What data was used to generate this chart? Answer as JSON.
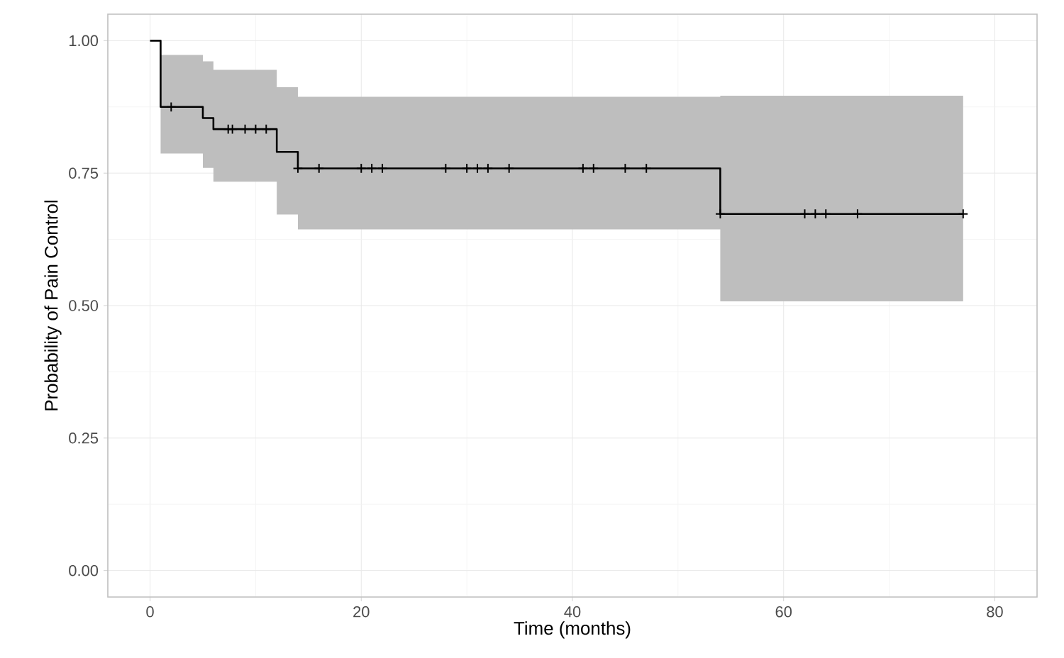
{
  "chart_data": {
    "type": "step",
    "xlabel": "Time (months)",
    "ylabel": "Probability of Pain Control",
    "xlim": [
      -4,
      84
    ],
    "ylim": [
      -0.05,
      1.05
    ],
    "xticks": [
      0,
      20,
      40,
      60,
      80
    ],
    "yticks": [
      {
        "value": 0,
        "label": "0.00"
      },
      {
        "value": 0.25,
        "label": "0.25"
      },
      {
        "value": 0.5,
        "label": "0.50"
      },
      {
        "value": 0.75,
        "label": "0.75"
      },
      {
        "value": 1,
        "label": "1.00"
      }
    ],
    "grid": true,
    "series": [
      {
        "type": "step",
        "color": "#000000",
        "x": [
          0,
          1,
          5,
          6,
          12,
          14,
          54,
          77
        ],
        "values": [
          1,
          0.875,
          0.854,
          0.833,
          0.79,
          0.759,
          0.673,
          0.673
        ],
        "lower": [
          null,
          0.787,
          0.76,
          0.734,
          0.672,
          0.644,
          0.508,
          0.508
        ],
        "upper": [
          null,
          0.973,
          0.961,
          0.945,
          0.912,
          0.894,
          0.896,
          0.896
        ]
      },
      {
        "type": "scatter",
        "marker": "cross",
        "color": "#000000",
        "x": [
          2,
          7.4,
          7.8,
          9,
          10,
          11,
          14,
          16,
          20,
          21,
          22,
          28,
          30,
          31,
          32,
          34,
          41,
          42,
          45,
          47,
          54,
          62,
          63,
          64,
          67,
          77
        ],
        "values": [
          0.875,
          0.833,
          0.833,
          0.833,
          0.833,
          0.833,
          0.759,
          0.759,
          0.759,
          0.759,
          0.759,
          0.759,
          0.759,
          0.759,
          0.759,
          0.759,
          0.759,
          0.759,
          0.759,
          0.759,
          0.673,
          0.673,
          0.673,
          0.673,
          0.673,
          0.673
        ]
      }
    ]
  }
}
